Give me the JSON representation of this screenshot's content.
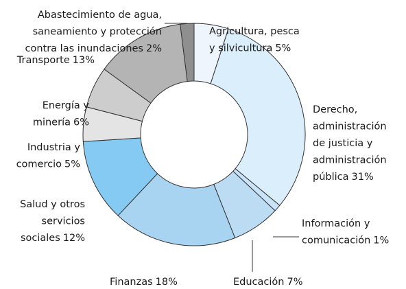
{
  "chart_data": {
    "type": "donut",
    "categories": [
      [
        "Agricultura, pesca",
        "y silvicultura"
      ],
      [
        "Derecho,",
        "administración",
        "de justicia y",
        "administración",
        "pública"
      ],
      [
        "Información y",
        "comunicación"
      ],
      [
        "Educación"
      ],
      [
        "Finanzas"
      ],
      [
        "Salud y otros",
        "servicios",
        "sociales"
      ],
      [
        "Industria y",
        "comercio"
      ],
      [
        "Energía y",
        "minería"
      ],
      [
        "Transporte"
      ],
      [
        "Abastecimiento de agua,",
        "saneamiento y protección",
        "contra las inundaciones"
      ]
    ],
    "values": [
      5,
      31,
      1,
      7,
      18,
      12,
      5,
      6,
      13,
      2
    ],
    "value_labels": [
      "5%",
      "31%",
      "1%",
      "7%",
      "18%",
      "12%",
      "5%",
      "6%",
      "13%",
      "2%"
    ],
    "colors": [
      "#eef5fd",
      "#dbeefc",
      "#c9e4f8",
      "#bcdcf4",
      "#a8d4f1",
      "#84caf2",
      "#e4e4e4",
      "#cdcdcd",
      "#b4b4b4",
      "#8f8f8f"
    ]
  }
}
